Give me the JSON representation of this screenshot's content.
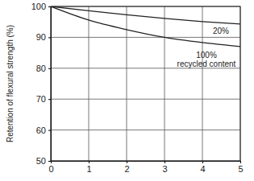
{
  "chart_data": {
    "type": "line",
    "y_label": "Retention of flexural strength (%)",
    "x": [
      0,
      1,
      2,
      3,
      4,
      5
    ],
    "series": [
      {
        "name": "20%",
        "color": "#222222",
        "values": [
          100,
          98.6,
          97.3,
          96.1,
          95.1,
          94.3
        ]
      },
      {
        "name": "100%\nrecycled content",
        "color": "#222222",
        "values": [
          100,
          95.6,
          92.5,
          90.0,
          88.3,
          87.0
        ]
      }
    ],
    "xlim": [
      0,
      5
    ],
    "ylim": [
      50,
      100
    ],
    "xticks": [
      0,
      1,
      2,
      3,
      4,
      5
    ],
    "yticks": [
      50,
      60,
      70,
      80,
      90,
      100
    ],
    "grid": true
  }
}
